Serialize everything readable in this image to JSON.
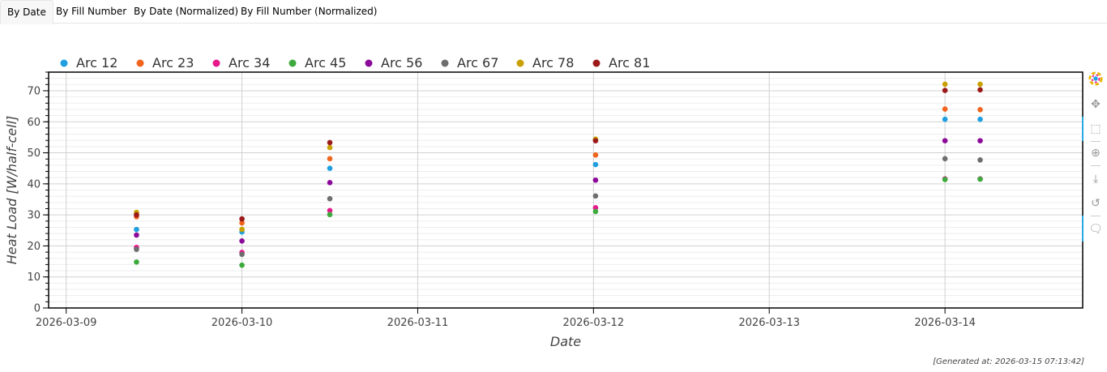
{
  "tabs": [
    {
      "label": "By Date",
      "active": true
    },
    {
      "label": "By Fill Number",
      "active": false
    },
    {
      "label": "By Date (Normalized)",
      "active": false
    },
    {
      "label": "By Fill Number (Normalized)",
      "active": false
    }
  ],
  "footer": "[Generated at: 2026-03-15 07:13:42]",
  "toolbar": [
    "bokeh-logo-icon",
    "pan-icon",
    "box-zoom-icon",
    "wheel-zoom-icon",
    "save-icon",
    "reset-icon",
    "hover-icon"
  ],
  "chart_data": {
    "type": "scatter",
    "xlabel": "Date",
    "ylabel": "Heat Load [W/half-cell]",
    "x_ticks": [
      "2026-03-09",
      "2026-03-10",
      "2026-03-11",
      "2026-03-12",
      "2026-03-13",
      "2026-03-14"
    ],
    "xlim": [
      "2026-03-08 21:36",
      "2026-03-14 18:48"
    ],
    "ylim": [
      0,
      76
    ],
    "y_ticks": [
      0,
      10,
      20,
      30,
      40,
      50,
      60,
      70
    ],
    "grid": true,
    "legend_position": "top-left",
    "series": [
      {
        "name": "Arc 12",
        "color": "#1f9fe0",
        "points": [
          [
            "2026-03-09 09:36",
            25.3
          ],
          [
            "2026-03-10 00:00",
            24.5
          ],
          [
            "2026-03-10 12:00",
            45.0
          ],
          [
            "2026-03-12 00:17",
            46.2
          ],
          [
            "2026-03-14 00:00",
            60.8
          ],
          [
            "2026-03-14 04:48",
            60.8
          ]
        ]
      },
      {
        "name": "Arc 23",
        "color": "#f0641e",
        "points": [
          [
            "2026-03-09 09:36",
            29.4
          ],
          [
            "2026-03-10 00:00",
            27.4
          ],
          [
            "2026-03-10 12:00",
            48.1
          ],
          [
            "2026-03-12 00:17",
            49.3
          ],
          [
            "2026-03-14 00:00",
            64.1
          ],
          [
            "2026-03-14 04:48",
            63.9
          ]
        ]
      },
      {
        "name": "Arc 34",
        "color": "#e6188c",
        "points": [
          [
            "2026-03-09 09:36",
            19.5
          ],
          [
            "2026-03-10 00:00",
            17.9
          ],
          [
            "2026-03-10 12:00",
            31.4
          ],
          [
            "2026-03-12 00:17",
            32.3
          ],
          [
            "2026-03-14 00:00",
            41.6
          ],
          [
            "2026-03-14 04:48",
            41.6
          ]
        ]
      },
      {
        "name": "Arc 45",
        "color": "#3caa3c",
        "points": [
          [
            "2026-03-09 09:36",
            14.8
          ],
          [
            "2026-03-10 00:00",
            13.8
          ],
          [
            "2026-03-10 12:00",
            30.1
          ],
          [
            "2026-03-12 00:17",
            31.1
          ],
          [
            "2026-03-14 00:00",
            41.4
          ],
          [
            "2026-03-14 04:48",
            41.5
          ]
        ]
      },
      {
        "name": "Arc 56",
        "color": "#8c0a9a",
        "points": [
          [
            "2026-03-09 09:36",
            23.5
          ],
          [
            "2026-03-10 00:00",
            21.6
          ],
          [
            "2026-03-10 12:00",
            40.4
          ],
          [
            "2026-03-12 00:17",
            41.2
          ],
          [
            "2026-03-14 00:00",
            53.9
          ],
          [
            "2026-03-14 04:48",
            53.9
          ]
        ]
      },
      {
        "name": "Arc 67",
        "color": "#6e6e6e",
        "points": [
          [
            "2026-03-09 09:36",
            18.9
          ],
          [
            "2026-03-10 00:00",
            17.3
          ],
          [
            "2026-03-10 12:00",
            35.2
          ],
          [
            "2026-03-12 00:17",
            36.1
          ],
          [
            "2026-03-14 00:00",
            48.1
          ],
          [
            "2026-03-14 04:48",
            47.7
          ]
        ]
      },
      {
        "name": "Arc 78",
        "color": "#c8a000",
        "points": [
          [
            "2026-03-09 09:36",
            30.8
          ],
          [
            "2026-03-10 00:00",
            25.3
          ],
          [
            "2026-03-10 12:00",
            51.7
          ],
          [
            "2026-03-12 00:17",
            54.4
          ],
          [
            "2026-03-14 00:00",
            72.1
          ],
          [
            "2026-03-14 04:48",
            72.1
          ]
        ]
      },
      {
        "name": "Arc 81",
        "color": "#9b1a1a",
        "points": [
          [
            "2026-03-09 09:36",
            30.0
          ],
          [
            "2026-03-10 00:00",
            28.7
          ],
          [
            "2026-03-10 12:00",
            53.3
          ],
          [
            "2026-03-12 00:17",
            53.9
          ],
          [
            "2026-03-14 00:00",
            70.1
          ],
          [
            "2026-03-14 04:48",
            70.3
          ]
        ]
      }
    ]
  }
}
